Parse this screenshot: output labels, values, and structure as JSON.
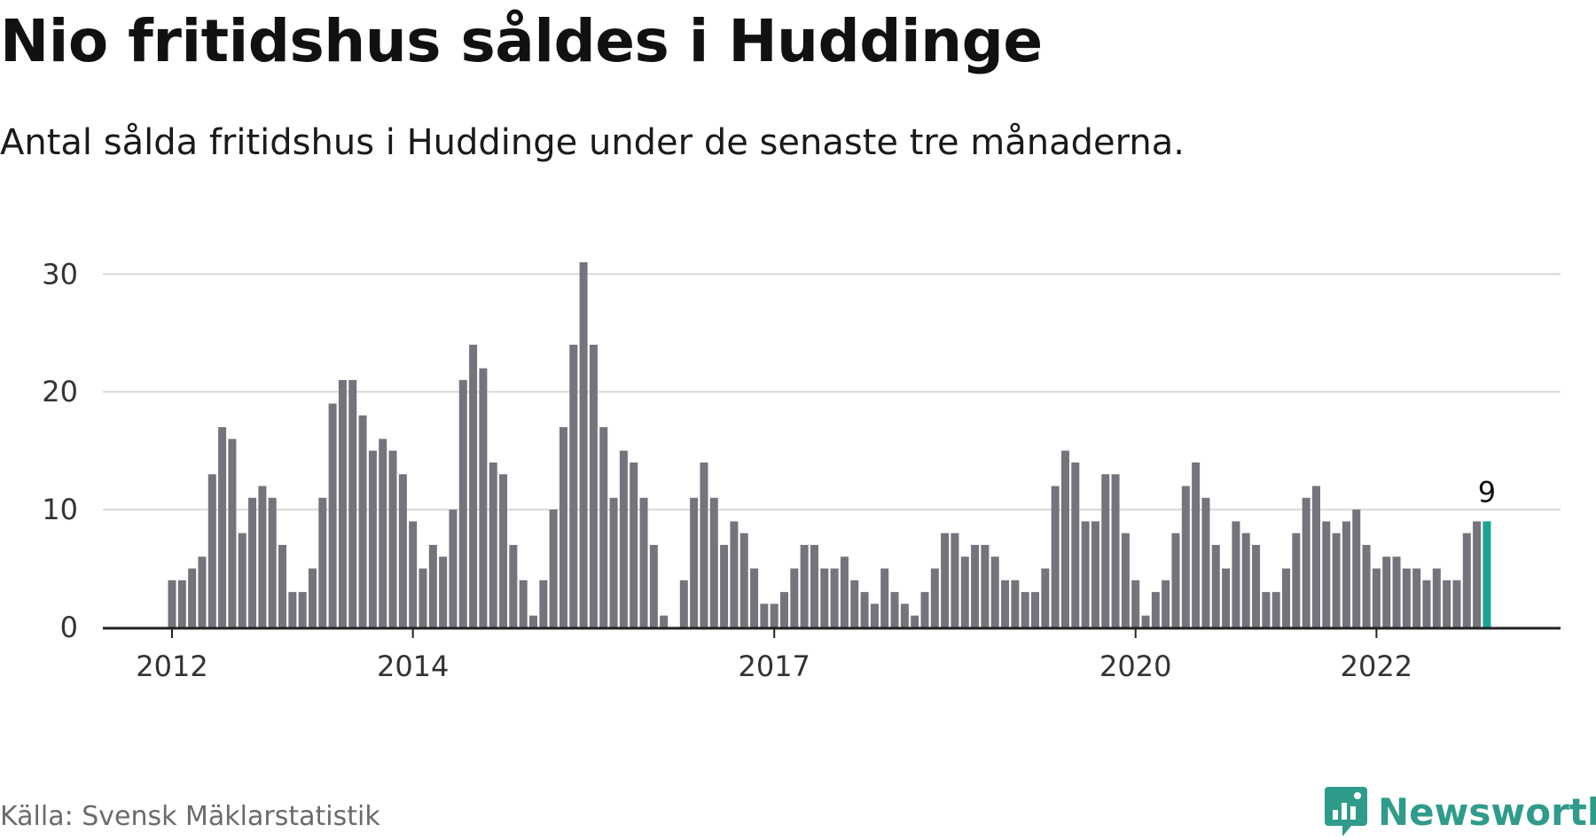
{
  "header": {
    "title": "Nio fritidshus såldes i Huddinge",
    "subtitle": "Antal sålda fritidshus i Huddinge under de senaste tre månaderna."
  },
  "footer": {
    "source": "Källa: Svensk Mäklarstatistik",
    "brand": "Newsworthy",
    "brand_icon": "bar-chart-speech-bubble-icon"
  },
  "colors": {
    "bar": "#75737b",
    "highlight": "#1aa295",
    "grid": "#d9d9d9",
    "axis": "#222222",
    "brand": "#2f9b8b"
  },
  "chart_data": {
    "type": "bar",
    "x_start": "2012-01",
    "frequency": "monthly",
    "values": [
      4,
      4,
      5,
      6,
      13,
      17,
      16,
      8,
      11,
      12,
      11,
      7,
      3,
      3,
      5,
      11,
      19,
      21,
      21,
      18,
      15,
      16,
      15,
      13,
      9,
      5,
      7,
      6,
      10,
      21,
      24,
      22,
      14,
      13,
      7,
      4,
      1,
      4,
      10,
      17,
      24,
      31,
      24,
      17,
      11,
      15,
      14,
      11,
      7,
      1,
      0,
      4,
      11,
      14,
      11,
      7,
      9,
      8,
      5,
      2,
      2,
      3,
      5,
      7,
      7,
      5,
      5,
      6,
      4,
      3,
      2,
      5,
      3,
      2,
      1,
      3,
      5,
      8,
      8,
      6,
      7,
      7,
      6,
      4,
      4,
      3,
      3,
      5,
      12,
      15,
      14,
      9,
      9,
      13,
      13,
      8,
      4,
      1,
      3,
      4,
      8,
      12,
      14,
      11,
      7,
      5,
      9,
      8,
      7,
      3,
      3,
      5,
      8,
      11,
      12,
      9,
      8,
      9,
      10,
      7,
      5,
      6,
      6,
      5,
      5,
      4,
      5,
      4,
      4,
      8,
      9,
      9
    ],
    "highlight_last": true,
    "annotation": "9",
    "x_ticks": [
      {
        "label": "2012",
        "index": 0
      },
      {
        "label": "2014",
        "index": 24
      },
      {
        "label": "2017",
        "index": 60
      },
      {
        "label": "2020",
        "index": 96
      },
      {
        "label": "2022",
        "index": 120
      }
    ],
    "y_ticks": [
      0,
      10,
      20,
      30
    ],
    "ylim": [
      0,
      31
    ],
    "grid": true,
    "xlabel": "",
    "ylabel": ""
  }
}
